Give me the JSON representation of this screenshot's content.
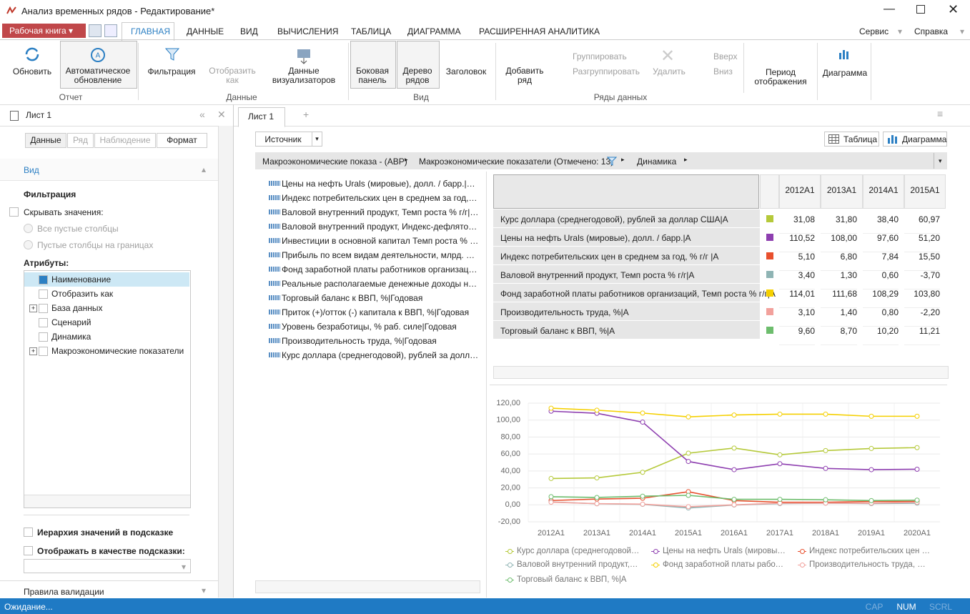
{
  "window": {
    "title": "Анализ временных рядов - Редактирование*"
  },
  "ribbon": {
    "workbook": "Рабочая книга",
    "tabs": [
      "ГЛАВНАЯ",
      "ДАННЫЕ",
      "ВИД",
      "ВЫЧИСЛЕНИЯ",
      "ТАБЛИЦА",
      "ДИАГРАММА",
      "РАСШИРЕННАЯ АНАЛИТИКА"
    ],
    "menus": [
      "Сервис",
      "Справка"
    ],
    "groups": [
      {
        "label": "Отчет",
        "buttons": [
          "Обновить",
          "Автоматическое обновление"
        ]
      },
      {
        "label": "Данные",
        "buttons": [
          "Фильтрация",
          "Отобразить как",
          "Данные визуализаторов"
        ]
      },
      {
        "label": "Вид",
        "buttons": [
          "Боковая панель",
          "Дерево рядов",
          "Заголовок"
        ]
      },
      {
        "label": "Ряды данных",
        "buttons": [
          "Добавить ряд",
          "Группировать",
          "Разгруппировать",
          "Удалить",
          "Вверх",
          "Вниз",
          "Период отображения"
        ]
      }
    ],
    "chart_button": "Диаграмма"
  },
  "side_panel": {
    "sheet": "Лист 1",
    "tabs": [
      "Данные",
      "Ряд",
      "Наблюдение",
      "Формат"
    ],
    "section": "Вид",
    "filter_title": "Фильтрация",
    "hide_values": "Скрывать значения:",
    "options": [
      "Все пустые столбцы",
      "Пустые столбцы на границах"
    ],
    "attributes_title": "Атрибуты:",
    "attributes": [
      "Наименование",
      "Отобразить как",
      "База данных",
      "Сценарий",
      "Динамика",
      "Макроэкономические показатели"
    ],
    "hierarchy": "Иерархия значений в подсказке",
    "tooltip": "Отображать в качестве подсказки:",
    "validation": "Правила валидации"
  },
  "workspace": {
    "sheet_tab": "Лист 1",
    "source": "Источник",
    "table_button": "Таблица",
    "chart_button": "Диаграмма",
    "breadcrumb": [
      "Макроэкономические показа - (АВР)",
      "Макроэкономические показатели (Отмечено: 13)",
      "Динамика"
    ],
    "series_list": [
      "Цены на нефть Urals (мировые), долл. / барр.|Годов",
      "Индекс  потребительских цен в среднем за год, % г/г",
      "Валовой внутренний продукт, Темп роста % г/г|Годо",
      "Валовой внутренний продукт, Индекс-дефлятор ВВ",
      "Инвестиции в основной капитал Темп роста % г/г|Г",
      "Прибыль по всем видам деятельности, млрд. руб.|Г",
      "Фонд заработной платы работников организаций,",
      "Реальные располагаемые денежные доходы населе",
      "Торговый баланс к ВВП, %|Годовая",
      "Приток (+)/отток (-) капитала к ВВП, %|Годовая",
      "Уровень безработицы, % раб. силе|Годовая",
      "Производительность труда, %|Годовая",
      "Курс доллара (среднегодовой), рублей за доллар СШ"
    ]
  },
  "table": {
    "rows": [
      [
        "31,08",
        "31,80",
        "38,40",
        "60,97"
      ],
      [
        "110,52",
        "108,00",
        "97,60",
        "51,20"
      ],
      [
        "5,10",
        "6,80",
        "7,84",
        "15,50"
      ],
      [
        "3,40",
        "1,30",
        "0,60",
        "-3,70"
      ],
      [
        "114,01",
        "111,68",
        "108,29",
        "103,80"
      ],
      [
        "3,10",
        "1,40",
        "0,80",
        "-2,20"
      ],
      [
        "9,60",
        "8,70",
        "10,20",
        "11,21"
      ]
    ]
  },
  "chart_data": {
    "type": "line",
    "categories": [
      "2012A1",
      "2013A1",
      "2014A1",
      "2015A1",
      "2016A1",
      "2017A1",
      "2018A1",
      "2019A1",
      "2020A1"
    ],
    "series": [
      {
        "name": "Курс доллара (среднегодовой), рублей за доллар США|A",
        "color": "#b5c93a",
        "values": [
          31.08,
          31.8,
          38.4,
          60.97,
          67,
          59,
          64,
          66.5,
          67.5
        ]
      },
      {
        "name": "Цены на нефть Urals (мировые), долл. / барр.|A",
        "color": "#8e3fb0",
        "values": [
          110.52,
          108,
          97.6,
          51.2,
          41.5,
          48.5,
          43,
          41.5,
          42
        ]
      },
      {
        "name": "Индекс потребительских цен в среднем за год, % г/г |A",
        "color": "#e8502e",
        "values": [
          5.1,
          6.8,
          7.84,
          15.5,
          5,
          3,
          3,
          4,
          4
        ]
      },
      {
        "name": "Валовой внутренний продукт, Темп роста % г/г|A",
        "color": "#8fb4b4",
        "values": [
          3.4,
          1.3,
          0.6,
          -3.7,
          -0.2,
          1.5,
          2,
          1.5,
          2
        ]
      },
      {
        "name": "Фонд заработной платы работников организаций, Темп роста % г/г|A",
        "color": "#f5d000",
        "values": [
          114.01,
          111.68,
          108.29,
          103.8,
          106,
          107,
          107,
          104.5,
          104.5
        ]
      },
      {
        "name": "Производительность труда, %|A",
        "color": "#f2a19c",
        "values": [
          3.1,
          1.4,
          0.8,
          -2.2,
          0,
          2,
          2,
          2,
          3
        ]
      },
      {
        "name": "Торговый баланс к ВВП, %|A",
        "color": "#6dbd6d",
        "values": [
          9.6,
          8.7,
          10.2,
          11.21,
          6.5,
          6.5,
          6,
          5,
          5.5
        ]
      }
    ],
    "ylim": [
      -20,
      120
    ],
    "yticks": [
      {
        "value": -20,
        "label": "-20,00"
      },
      {
        "value": 0,
        "label": "0,00"
      },
      {
        "value": 20,
        "label": "20,00"
      },
      {
        "value": 40,
        "label": "40,00"
      },
      {
        "value": 60,
        "label": "60,00"
      },
      {
        "value": 80,
        "label": "80,00"
      },
      {
        "value": 100,
        "label": "100,00"
      },
      {
        "value": 120,
        "label": "120,00"
      }
    ],
    "grid": true
  },
  "status": {
    "text": "Ожидание...",
    "indicators": [
      "CAP",
      "NUM",
      "SCRL"
    ]
  }
}
